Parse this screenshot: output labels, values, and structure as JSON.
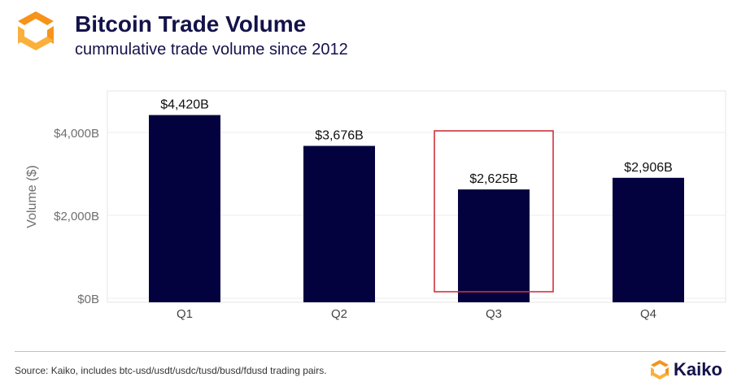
{
  "header": {
    "title": "Bitcoin Trade Volume",
    "subtitle": "cummulative trade volume since 2012",
    "logo_icon": "kaiko-logo-icon"
  },
  "colors": {
    "bar": "#03023f",
    "title": "#13124a",
    "highlight_box": "#d0323c",
    "logo_orange": "#f7931a",
    "logo_yellow": "#fbb03b"
  },
  "chart_data": {
    "type": "bar",
    "title": "Bitcoin Trade Volume",
    "subtitle": "cummulative trade volume since 2012",
    "categories": [
      "Q1",
      "Q2",
      "Q3",
      "Q4"
    ],
    "values": [
      4420,
      3676,
      2625,
      2906
    ],
    "data_labels": [
      "$4,420B",
      "$3,676B",
      "$2,625B",
      "$2,906B"
    ],
    "xlabel": "",
    "ylabel": "Volume ($)",
    "ylim": [
      0,
      5000
    ],
    "yticks": [
      0,
      2000,
      4000
    ],
    "ytick_labels": [
      "$0B",
      "$2,000B",
      "$4,000B"
    ],
    "grid": true,
    "highlight_category": "Q3"
  },
  "footer": {
    "source": "Source: Kaiko, includes btc-usd/usdt/usdc/tusd/busd/fdusd trading pairs.",
    "brand": "Kaiko"
  }
}
